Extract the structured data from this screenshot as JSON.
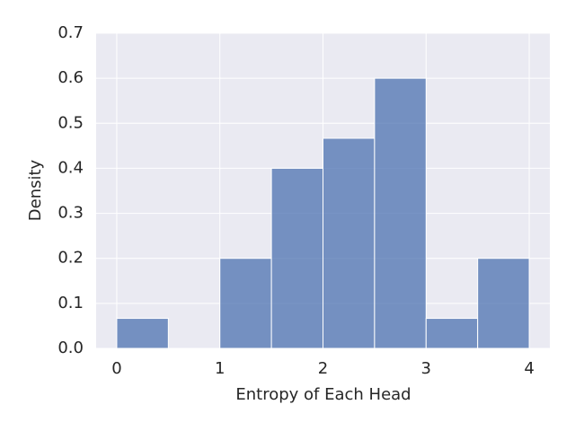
{
  "chart_data": {
    "type": "histogram",
    "xlabel": "Entropy of Each Head",
    "ylabel": "Density",
    "bins": [
      0,
      0.5,
      1,
      1.5,
      2,
      2.5,
      3,
      3.5,
      4
    ],
    "values": [
      0.0667,
      0,
      0.2,
      0.4,
      0.4667,
      0.6,
      0.0667,
      0.2
    ],
    "color": "#4c72b0",
    "xlim": [
      -0.2,
      4.2
    ],
    "ylim": [
      0,
      0.7
    ],
    "xticks": [
      0,
      1,
      2,
      3,
      4
    ],
    "yticks": [
      {
        "value": 0,
        "label": "0.0"
      },
      0.1,
      0.2,
      0.3,
      0.4,
      0.5,
      0.6,
      0.7
    ],
    "grid": true
  }
}
